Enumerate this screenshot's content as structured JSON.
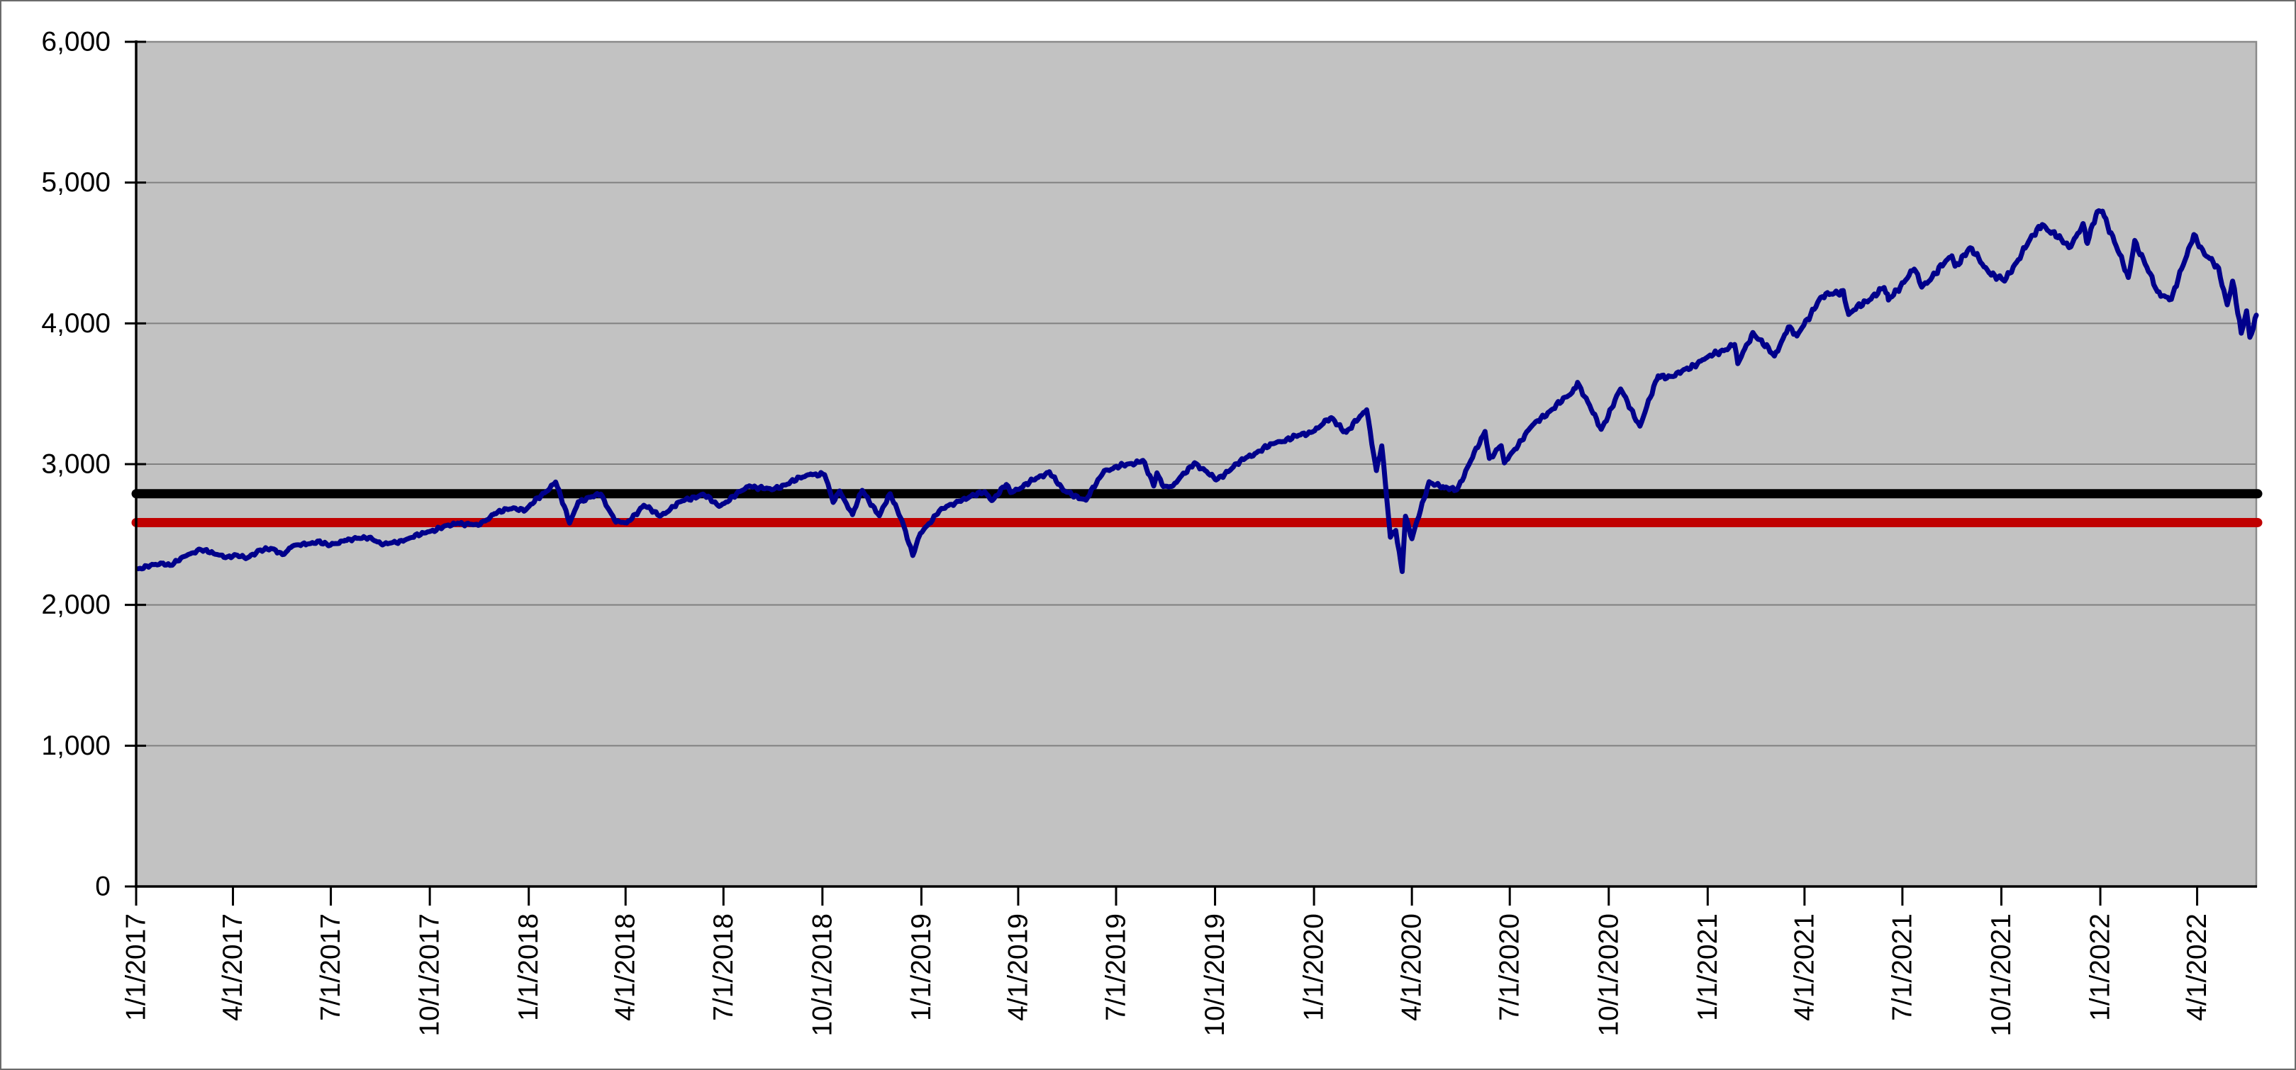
{
  "chart_data": {
    "type": "line",
    "title": "",
    "xlabel": "",
    "ylabel": "",
    "grid": "horizontal",
    "legend": "none",
    "ylim": [
      0,
      6000
    ],
    "y_tick_step": 1000,
    "y_tick_labels": [
      "0",
      "1,000",
      "2,000",
      "3,000",
      "4,000",
      "5,000",
      "6,000"
    ],
    "x_tick_labels": [
      "1/1/2017",
      "4/1/2017",
      "7/1/2017",
      "10/1/2017",
      "1/1/2018",
      "4/1/2018",
      "7/1/2018",
      "10/1/2018",
      "1/1/2019",
      "4/1/2019",
      "7/1/2019",
      "10/1/2019",
      "1/1/2020",
      "4/1/2020",
      "7/1/2020",
      "10/1/2020",
      "1/1/2021",
      "4/1/2021",
      "7/1/2021",
      "10/1/2021",
      "1/1/2022",
      "4/1/2022"
    ],
    "x_range": [
      "1/1/2017",
      "5/26/2022"
    ],
    "ref_lines": [
      {
        "name": "black-reference-line",
        "value": 2790,
        "color": "#000000",
        "width": 13
      },
      {
        "name": "red-reference-line",
        "value": 2585,
        "color": "#C00000",
        "width": 13
      }
    ],
    "series": [
      {
        "name": "index-price",
        "color": "#00008B",
        "width": 7,
        "points": [
          [
            "1/3/2017",
            2257
          ],
          [
            "1/26/2017",
            2297
          ],
          [
            "2/2/2017",
            2281
          ],
          [
            "2/17/2017",
            2351
          ],
          [
            "3/1/2017",
            2396
          ],
          [
            "3/14/2017",
            2365
          ],
          [
            "3/27/2017",
            2342
          ],
          [
            "4/5/2017",
            2353
          ],
          [
            "4/13/2017",
            2329
          ],
          [
            "4/25/2017",
            2388
          ],
          [
            "5/9/2017",
            2397
          ],
          [
            "5/17/2017",
            2357
          ],
          [
            "5/26/2017",
            2416
          ],
          [
            "6/9/2017",
            2432
          ],
          [
            "6/19/2017",
            2453
          ],
          [
            "6/29/2017",
            2420
          ],
          [
            "7/14/2017",
            2459
          ],
          [
            "8/7/2017",
            2481
          ],
          [
            "8/18/2017",
            2426
          ],
          [
            "9/8/2017",
            2461
          ],
          [
            "9/29/2017",
            2519
          ],
          [
            "10/27/2017",
            2581
          ],
          [
            "11/15/2017",
            2565
          ],
          [
            "11/30/2017",
            2648
          ],
          [
            "12/18/2017",
            2690
          ],
          [
            "12/29/2017",
            2674
          ],
          [
            "1/26/2018",
            2873
          ],
          [
            "2/8/2018",
            2581
          ],
          [
            "2/16/2018",
            2732
          ],
          [
            "3/9/2018",
            2787
          ],
          [
            "3/23/2018",
            2588
          ],
          [
            "4/2/2018",
            2582
          ],
          [
            "4/18/2018",
            2708
          ],
          [
            "5/3/2018",
            2630
          ],
          [
            "5/22/2018",
            2733
          ],
          [
            "6/12/2018",
            2787
          ],
          [
            "6/27/2018",
            2700
          ],
          [
            "7/25/2018",
            2846
          ],
          [
            "8/15/2018",
            2818
          ],
          [
            "9/20/2018",
            2930
          ],
          [
            "10/3/2018",
            2925
          ],
          [
            "10/11/2018",
            2728
          ],
          [
            "10/17/2018",
            2809
          ],
          [
            "10/29/2018",
            2641
          ],
          [
            "11/7/2018",
            2814
          ],
          [
            "11/23/2018",
            2633
          ],
          [
            "12/3/2018",
            2790
          ],
          [
            "12/14/2018",
            2600
          ],
          [
            "12/24/2018",
            2351
          ],
          [
            "12/31/2018",
            2507
          ],
          [
            "1/18/2019",
            2671
          ],
          [
            "2/5/2019",
            2738
          ],
          [
            "3/1/2019",
            2804
          ],
          [
            "3/8/2019",
            2743
          ],
          [
            "3/21/2019",
            2855
          ],
          [
            "3/25/2019",
            2798
          ],
          [
            "4/30/2019",
            2946
          ],
          [
            "5/13/2019",
            2812
          ],
          [
            "6/3/2019",
            2744
          ],
          [
            "6/20/2019",
            2954
          ],
          [
            "7/26/2019",
            3026
          ],
          [
            "8/5/2019",
            2845
          ],
          [
            "8/8/2019",
            2938
          ],
          [
            "8/14/2019",
            2841
          ],
          [
            "8/23/2019",
            2847
          ],
          [
            "9/12/2019",
            3010
          ],
          [
            "10/2/2019",
            2888
          ],
          [
            "10/30/2019",
            3047
          ],
          [
            "11/27/2019",
            3154
          ],
          [
            "12/31/2019",
            3231
          ],
          [
            "1/17/2020",
            3330
          ],
          [
            "1/31/2020",
            3226
          ],
          [
            "2/19/2020",
            3386
          ],
          [
            "2/28/2020",
            2954
          ],
          [
            "3/4/2020",
            3130
          ],
          [
            "3/12/2020",
            2481
          ],
          [
            "3/17/2020",
            2529
          ],
          [
            "3/23/2020",
            2237
          ],
          [
            "3/26/2020",
            2630
          ],
          [
            "4/1/2020",
            2470
          ],
          [
            "4/17/2020",
            2875
          ],
          [
            "5/1/2020",
            2831
          ],
          [
            "5/13/2020",
            2820
          ],
          [
            "6/8/2020",
            3232
          ],
          [
            "6/12/2020",
            3041
          ],
          [
            "6/23/2020",
            3131
          ],
          [
            "6/26/2020",
            3009
          ],
          [
            "7/22/2020",
            3276
          ],
          [
            "8/28/2020",
            3508
          ],
          [
            "9/2/2020",
            3581
          ],
          [
            "9/24/2020",
            3247
          ],
          [
            "10/12/2020",
            3534
          ],
          [
            "10/30/2020",
            3270
          ],
          [
            "11/16/2020",
            3627
          ],
          [
            "11/30/2020",
            3622
          ],
          [
            "12/31/2020",
            3756
          ],
          [
            "1/26/2021",
            3850
          ],
          [
            "1/29/2021",
            3714
          ],
          [
            "2/12/2021",
            3935
          ],
          [
            "3/4/2021",
            3768
          ],
          [
            "3/17/2021",
            3974
          ],
          [
            "3/25/2021",
            3910
          ],
          [
            "4/16/2021",
            4185
          ],
          [
            "5/7/2021",
            4233
          ],
          [
            "5/12/2021",
            4063
          ],
          [
            "6/14/2021",
            4255
          ],
          [
            "6/18/2021",
            4166
          ],
          [
            "7/12/2021",
            4385
          ],
          [
            "7/19/2021",
            4258
          ],
          [
            "8/16/2021",
            4480
          ],
          [
            "8/19/2021",
            4406
          ],
          [
            "9/2/2021",
            4537
          ],
          [
            "9/20/2021",
            4358
          ],
          [
            "10/4/2021",
            4300
          ],
          [
            "10/26/2021",
            4575
          ],
          [
            "11/8/2021",
            4702
          ],
          [
            "11/26/2021",
            4595
          ],
          [
            "12/3/2021",
            4538
          ],
          [
            "12/16/2021",
            4709
          ],
          [
            "12/20/2021",
            4568
          ],
          [
            "12/29/2021",
            4793
          ],
          [
            "1/3/2022",
            4797
          ],
          [
            "1/27/2022",
            4326
          ],
          [
            "2/2/2022",
            4589
          ],
          [
            "2/23/2022",
            4226
          ],
          [
            "3/8/2022",
            4171
          ],
          [
            "3/29/2022",
            4631
          ],
          [
            "4/8/2022",
            4488
          ],
          [
            "4/21/2022",
            4393
          ],
          [
            "4/29/2022",
            4132
          ],
          [
            "5/4/2022",
            4300
          ],
          [
            "5/12/2022",
            3930
          ],
          [
            "5/17/2022",
            4089
          ],
          [
            "5/20/2022",
            3901
          ],
          [
            "5/26/2022",
            4058
          ]
        ]
      }
    ],
    "colors": {
      "page_bg": "#FFFFFF",
      "plot_bg": "#C2C2C2",
      "gridline": "#808080",
      "plot_border": "#8A8A8A",
      "axis": "#000000",
      "tick_text": "#000000",
      "frame_border": "#6B6B6B"
    }
  }
}
